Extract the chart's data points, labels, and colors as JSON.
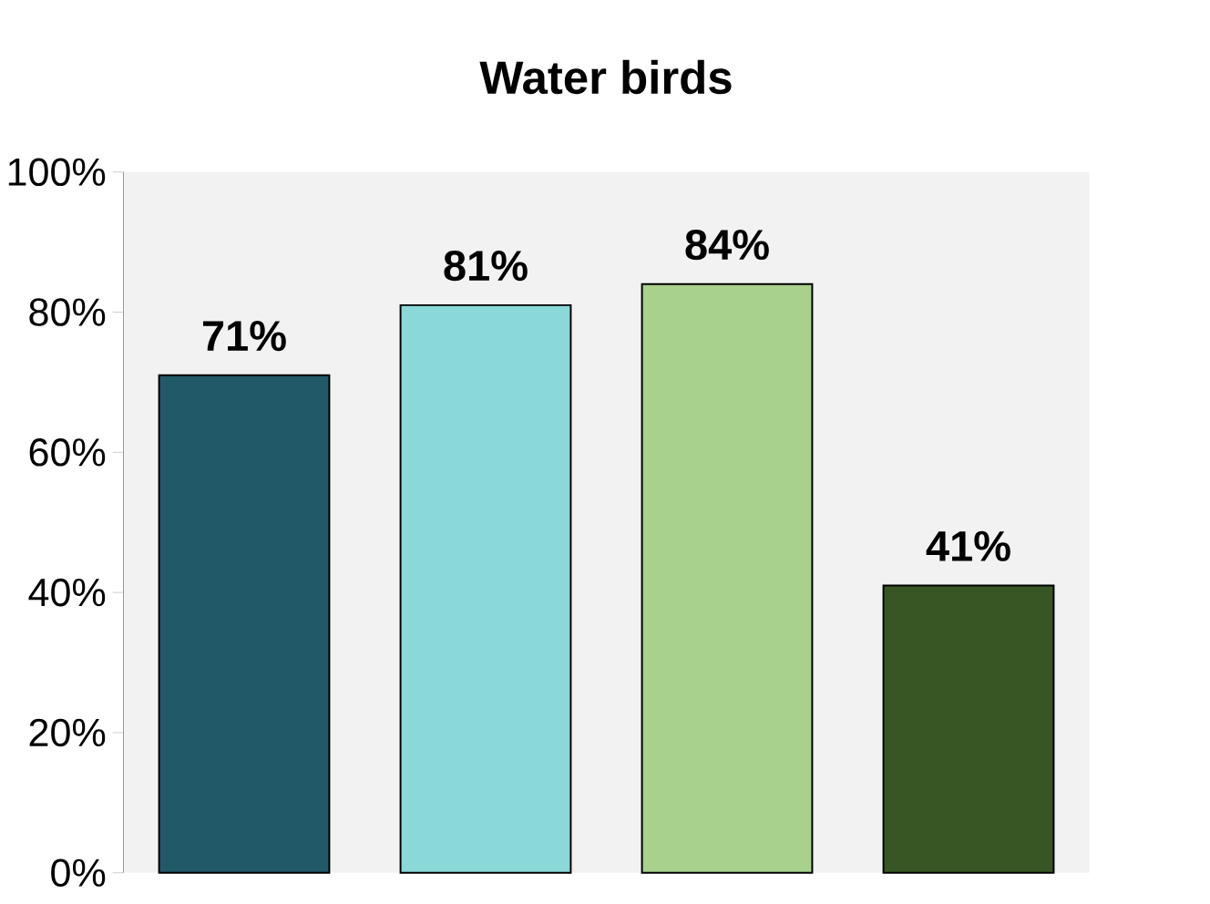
{
  "chart_data": {
    "type": "bar",
    "title": "Water birds",
    "categories": [
      null,
      null,
      null,
      null
    ],
    "values": [
      71,
      81,
      84,
      41
    ],
    "colors": [
      "#225968",
      "#8ad8d8",
      "#a9d18e",
      "#375623"
    ],
    "value_labels": [
      "71%",
      "81%",
      "84%",
      "41%"
    ],
    "ylim": [
      0,
      100
    ],
    "yticks": [
      {
        "value": 0,
        "label": "0%"
      },
      {
        "value": 20,
        "label": "20%"
      },
      {
        "value": 40,
        "label": "40%"
      },
      {
        "value": 60,
        "label": "60%"
      },
      {
        "value": 80,
        "label": "80%"
      },
      {
        "value": 100,
        "label": "100%"
      }
    ]
  }
}
